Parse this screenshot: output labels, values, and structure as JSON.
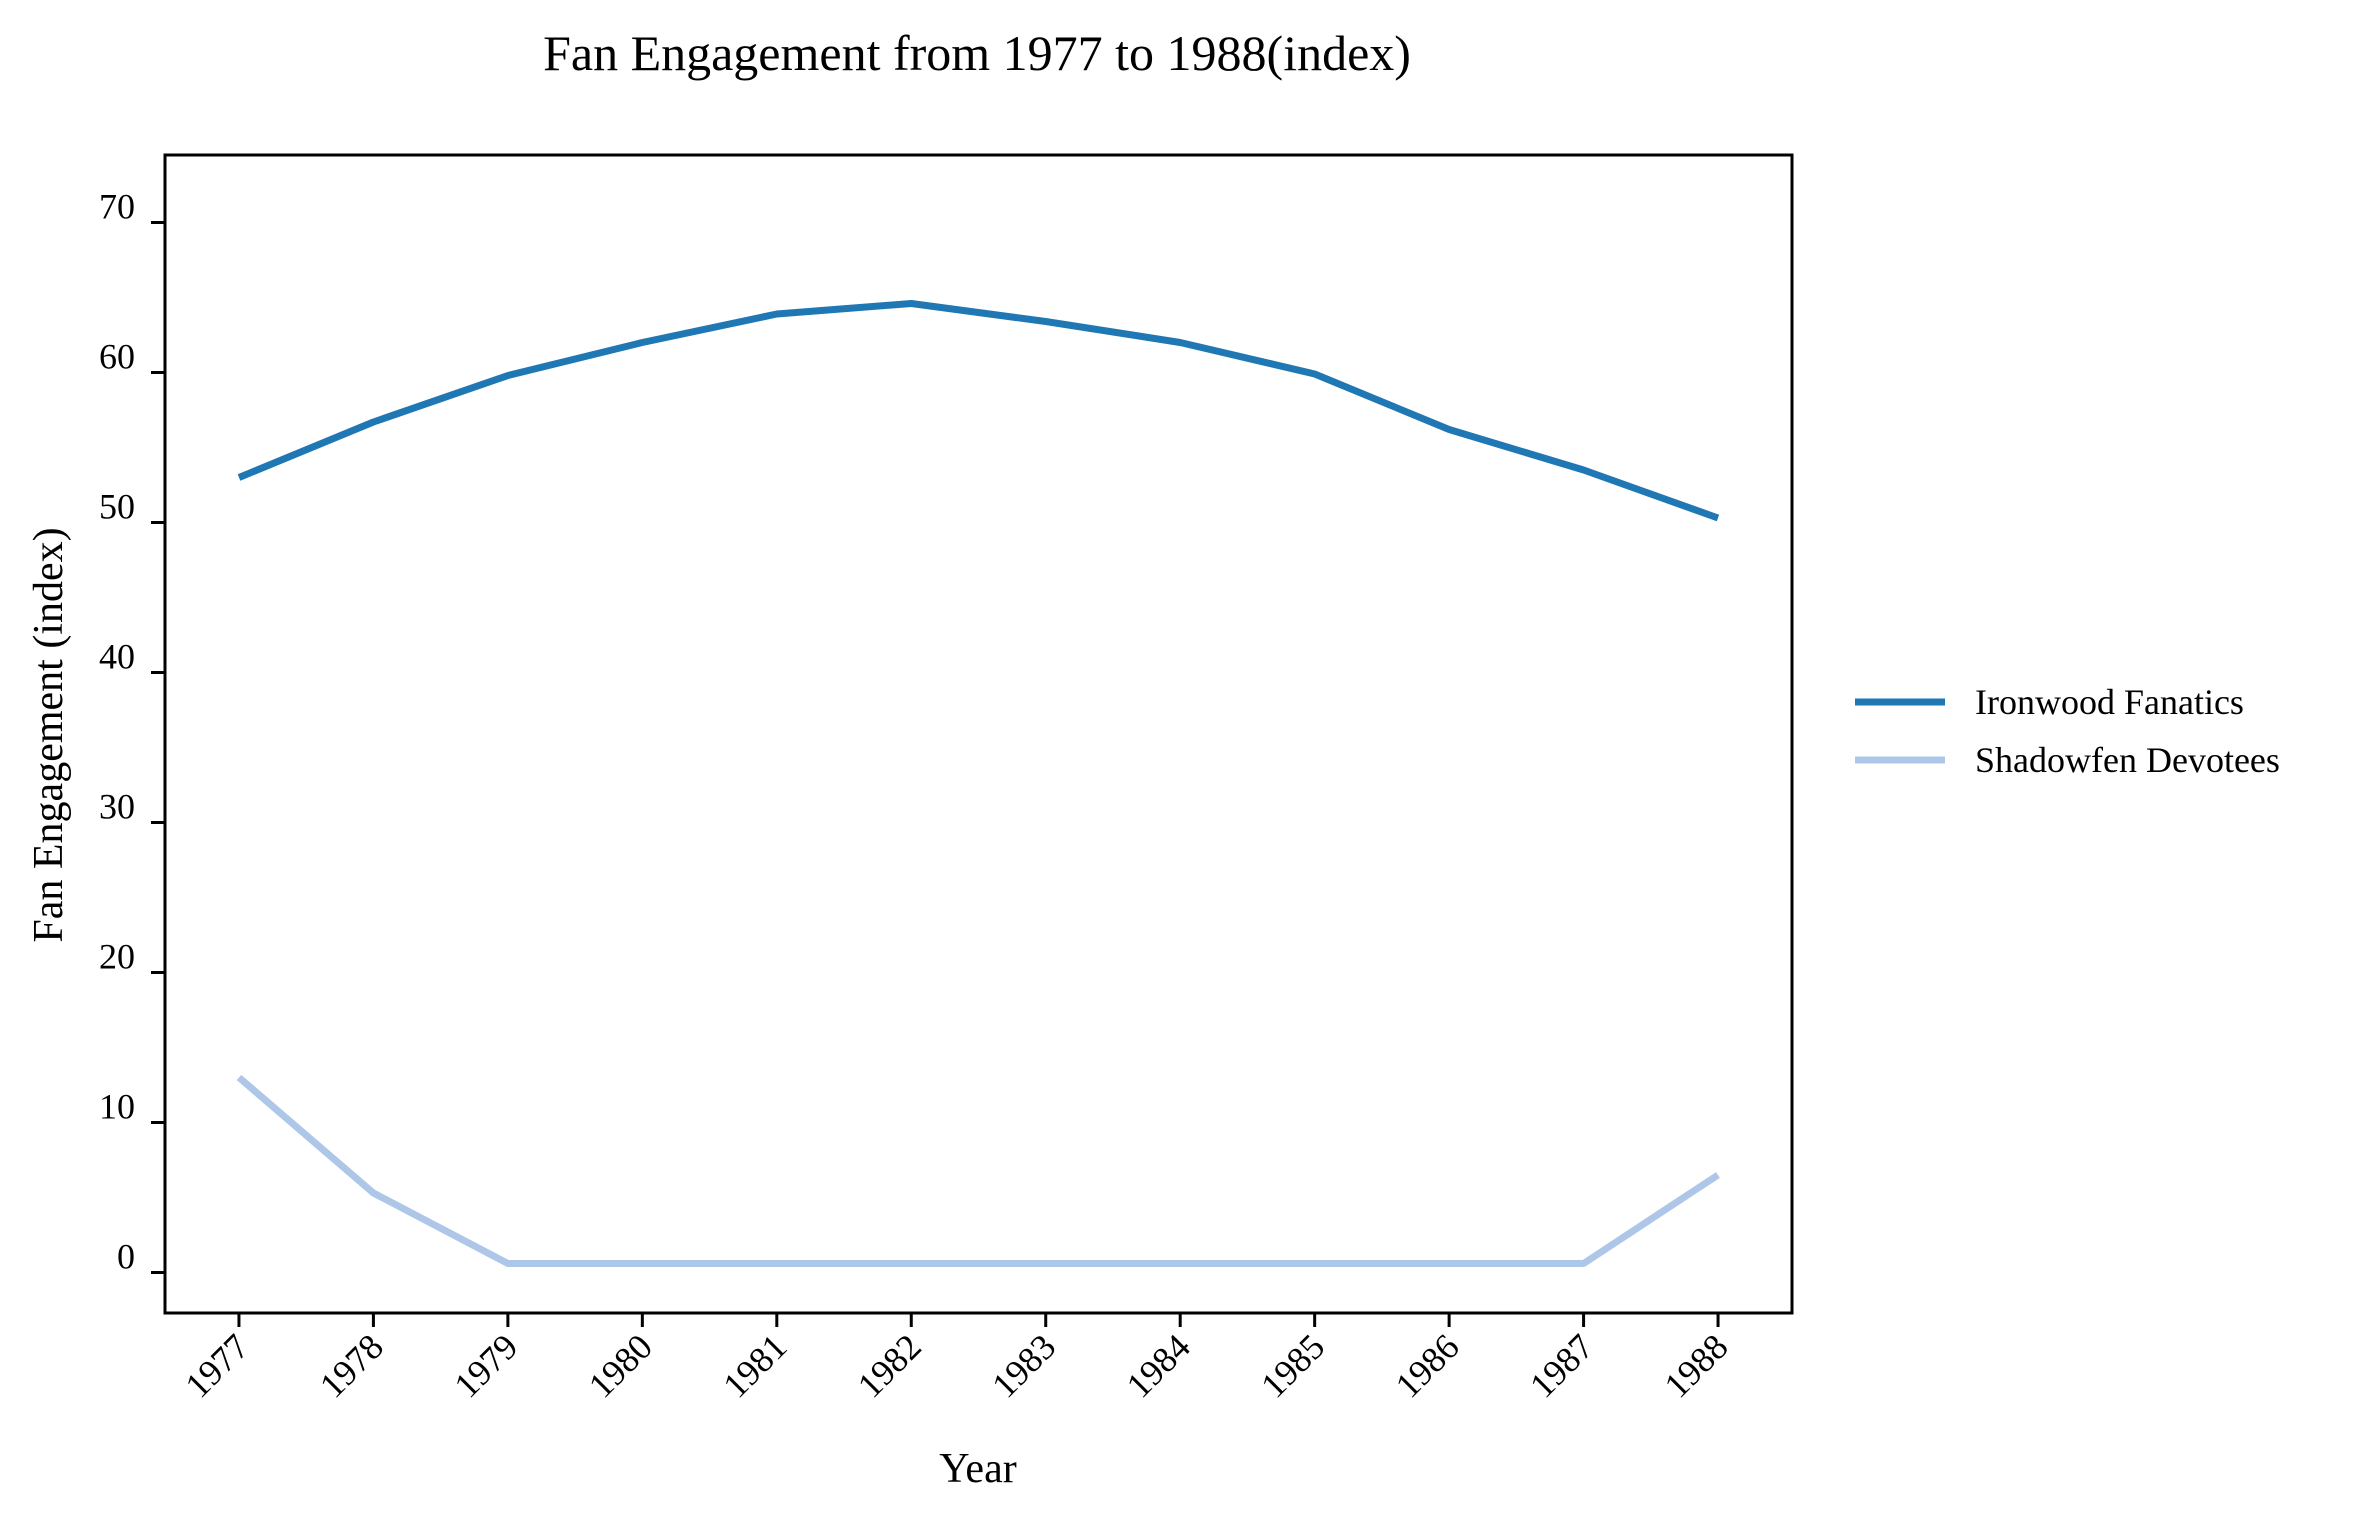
{
  "chart_data": {
    "type": "line",
    "title": "Fan Engagement from 1977 to 1988(index)",
    "xlabel": "Year",
    "ylabel": "Fan Engagement (index)",
    "x": [
      1977,
      1978,
      1979,
      1980,
      1981,
      1982,
      1983,
      1984,
      1985,
      1986,
      1987,
      1988
    ],
    "x_tick_labels": [
      "1977",
      "1978",
      "1979",
      "1980",
      "1981",
      "1982",
      "1983",
      "1984",
      "1985",
      "1986",
      "1987",
      "1988"
    ],
    "y_ticks": [
      0,
      10,
      20,
      30,
      40,
      50,
      60,
      70
    ],
    "y_tick_labels": [
      "0",
      "10",
      "20",
      "30",
      "40",
      "50",
      "60",
      "70"
    ],
    "xlim": [
      1976.45,
      1988.55
    ],
    "ylim": [
      -2.7,
      74.5
    ],
    "grid": false,
    "legend_position": "right",
    "series": [
      {
        "name": "Ironwood Fanatics",
        "color": "#1f77b4",
        "values": [
          53.0,
          56.7,
          59.8,
          62.0,
          63.9,
          64.6,
          63.4,
          62.0,
          59.9,
          56.2,
          53.5,
          50.3
        ]
      },
      {
        "name": "Shadowfen Devotees",
        "color": "#aec7e8",
        "values": [
          13.0,
          5.3,
          0.6,
          0.6,
          0.6,
          0.6,
          0.6,
          0.6,
          0.6,
          0.6,
          0.6,
          6.5
        ]
      }
    ]
  }
}
